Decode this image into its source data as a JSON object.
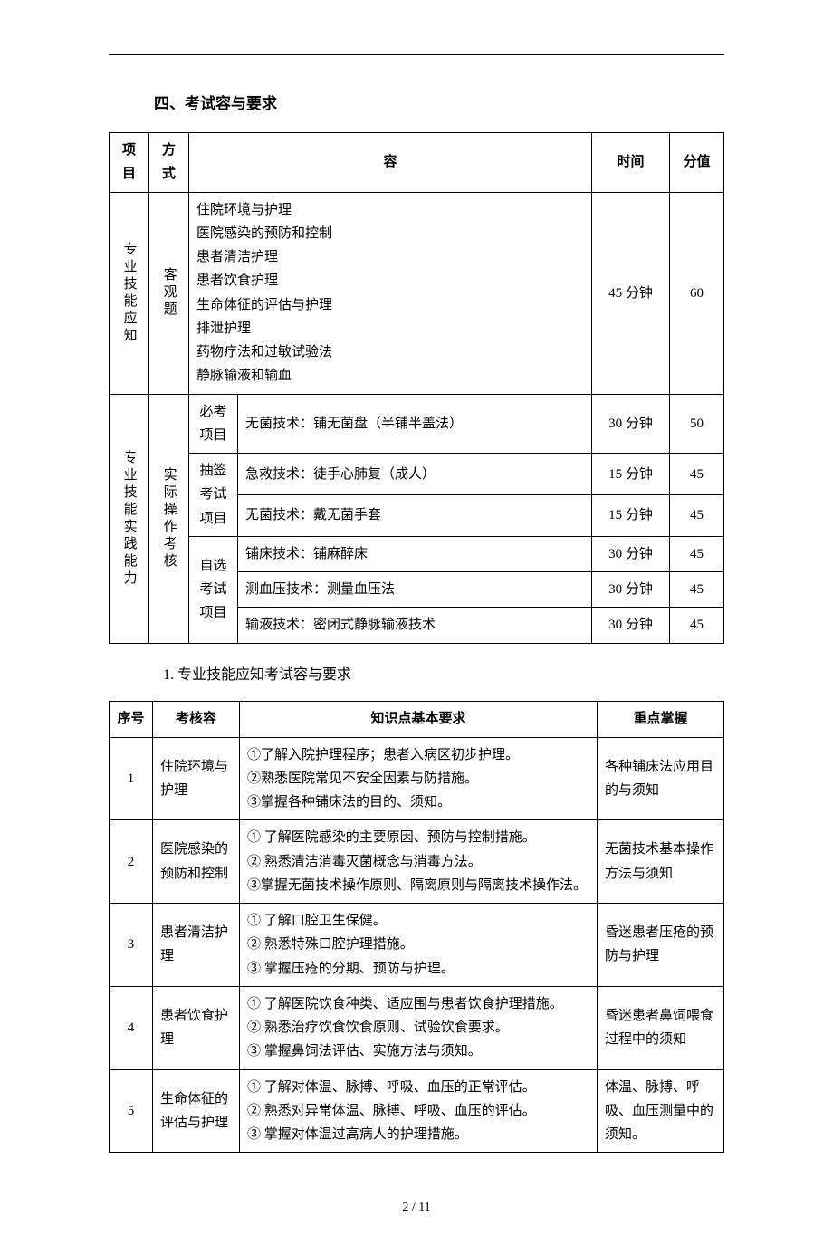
{
  "section_title": "四、考试容与要求",
  "table1": {
    "headers": [
      "项目",
      "方式",
      "容",
      "时间",
      "分值"
    ],
    "row1": {
      "project": "专业技能应知",
      "method": "客观题",
      "content": "住院环境与护理\n医院感染的预防和控制\n患者清洁护理\n患者饮食护理\n生命体征的评估与护理\n排泄护理\n药物疗法和过敏试验法\n静脉输液和输血",
      "time": "45 分钟",
      "score": "60"
    },
    "row2": {
      "project": "专业技能实践能力",
      "method": "实际操作考核",
      "groups": [
        {
          "label": "必考项目",
          "items": [
            {
              "content": "无菌技术：铺无菌盘（半铺半盖法）",
              "time": "30 分钟",
              "score": "50"
            }
          ]
        },
        {
          "label": "抽签考试项目",
          "items": [
            {
              "content": "急救技术：徒手心肺复（成人）",
              "time": "15 分钟",
              "score": "45"
            },
            {
              "content": "无菌技术：戴无菌手套",
              "time": "15 分钟",
              "score": "45"
            }
          ]
        },
        {
          "label": "自选考试项目",
          "items": [
            {
              "content": "铺床技术：铺麻醉床",
              "time": "30 分钟",
              "score": "45"
            },
            {
              "content": "测血压技术：测量血压法",
              "time": "30 分钟",
              "score": "45"
            },
            {
              "content": "输液技术：密闭式静脉输液技术",
              "time": "30 分钟",
              "score": "45"
            }
          ]
        }
      ]
    }
  },
  "subsection_title": "1.  专业技能应知考试容与要求",
  "table2": {
    "headers": [
      "序号",
      "考核容",
      "知识点基本要求",
      "重点掌握"
    ],
    "rows": [
      {
        "num": "1",
        "topic": "住院环境与护理",
        "req": "①了解入院护理程序；患者入病区初步护理。\n②熟悉医院常见不安全因素与防措施。\n③掌握各种铺床法的目的、须知。",
        "key": "各种铺床法应用目的与须知"
      },
      {
        "num": "2",
        "topic": "医院感染的预防和控制",
        "req": "① 了解医院感染的主要原因、预防与控制措施。\n② 熟悉清洁消毒灭菌概念与消毒方法。\n③掌握无菌技术操作原则、隔离原则与隔离技术操作法。",
        "key": "无菌技术基本操作方法与须知"
      },
      {
        "num": "3",
        "topic": "患者清洁护理",
        "req": "① 了解口腔卫生保健。\n② 熟悉特殊口腔护理措施。\n③ 掌握压疮的分期、预防与护理。",
        "key": "昏迷患者压疮的预防与护理"
      },
      {
        "num": "4",
        "topic": "患者饮食护理",
        "req": "① 了解医院饮食种类、适应围与患者饮食护理措施。\n② 熟悉治疗饮食饮食原则、试验饮食要求。\n③ 掌握鼻饲法评估、实施方法与须知。",
        "key": "昏迷患者鼻饲喂食过程中的须知"
      },
      {
        "num": "5",
        "topic": "生命体征的评估与护理",
        "req": "① 了解对体温、脉搏、呼吸、血压的正常评估。\n② 熟悉对异常体温、脉搏、呼吸、血压的评估。\n③ 掌握对体温过高病人的护理措施。",
        "key": "体温、脉搏、呼吸、血压测量中的须知。"
      }
    ]
  },
  "footer": "2 / 11"
}
